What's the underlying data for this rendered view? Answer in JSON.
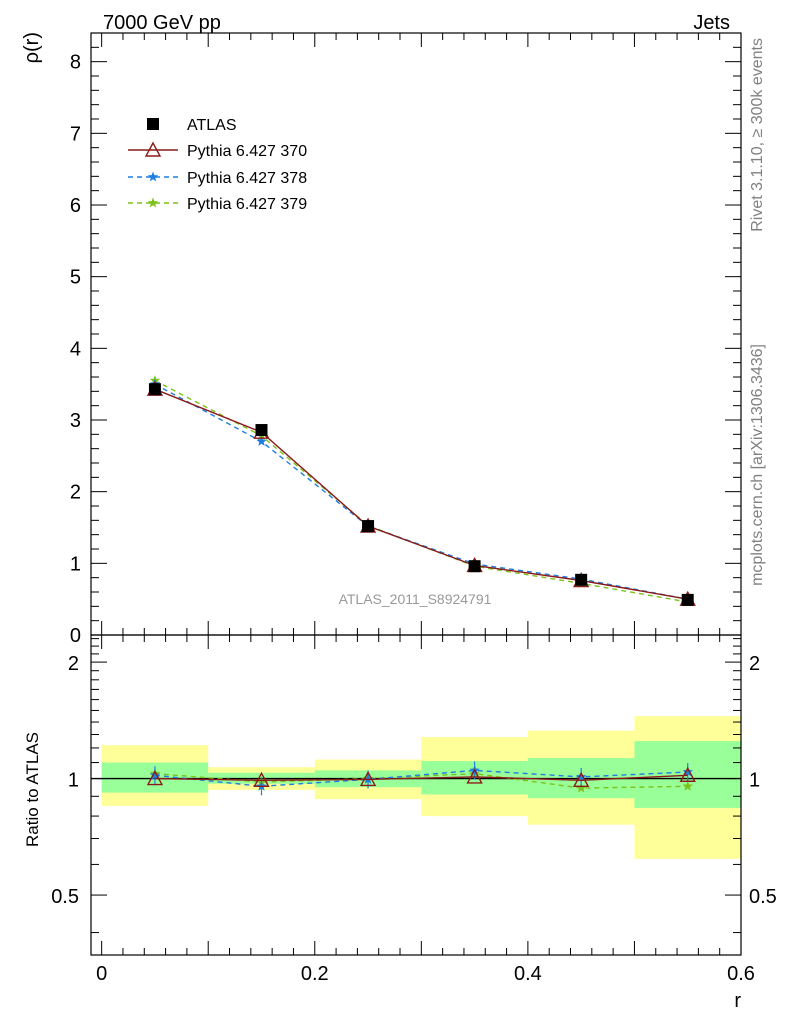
{
  "header": {
    "left": "7000 GeV pp",
    "right": "Jets"
  },
  "side_labels": {
    "rivet": "Rivet 3.1.10, ≥ 300k events",
    "mcplots": "mcplots.cern.ch [arXiv:1306.3436]"
  },
  "analysis_id": "ATLAS_2011_S8924791",
  "colors": {
    "atlas": "#000000",
    "p370": "#8b1a1a",
    "p378": "#1e7fe0",
    "p379": "#7cc21a",
    "band_inner": "#99ff99",
    "band_outer": "#ffff99"
  },
  "chart_data": [
    {
      "type": "line",
      "panel": "main",
      "ylabel": "ρ(r)",
      "xlim": [
        -0.01,
        0.6
      ],
      "ylim": [
        0,
        8.4
      ],
      "yticks": [
        0,
        1,
        2,
        3,
        4,
        5,
        6,
        7,
        8
      ],
      "ytick_labels": [
        "0",
        "1",
        "2",
        "3",
        "4",
        "5",
        "6",
        "7",
        "8"
      ],
      "x": [
        0.05,
        0.15,
        0.25,
        0.35,
        0.45,
        0.55
      ],
      "series": [
        {
          "name": "ATLAS",
          "key": "atlas",
          "values": [
            3.43,
            2.86,
            1.52,
            0.96,
            0.77,
            0.49
          ]
        },
        {
          "name": "Pythia 6.427 370",
          "key": "p370",
          "values": [
            3.43,
            2.83,
            1.52,
            0.97,
            0.76,
            0.5
          ]
        },
        {
          "name": "Pythia 6.427 378",
          "key": "p378",
          "values": [
            3.5,
            2.7,
            1.52,
            0.99,
            0.78,
            0.5
          ]
        },
        {
          "name": "Pythia 6.427 379",
          "key": "p379",
          "values": [
            3.55,
            2.78,
            1.53,
            0.96,
            0.72,
            0.46
          ]
        }
      ]
    },
    {
      "type": "line",
      "panel": "ratio",
      "ylabel": "Ratio to ATLAS",
      "xlabel": "r",
      "xlim": [
        -0.01,
        0.6
      ],
      "ylim": [
        0.35,
        2.35
      ],
      "yticks": [
        0.5,
        1,
        2
      ],
      "ytick_labels": [
        "0.5",
        "1",
        "2"
      ],
      "xticks": [
        0,
        0.2,
        0.4,
        0.6
      ],
      "xtick_labels": [
        "0",
        "0.2",
        "0.4",
        "0.6"
      ],
      "x": [
        0.05,
        0.15,
        0.25,
        0.35,
        0.45,
        0.55
      ],
      "bins": [
        [
          0,
          0.1
        ],
        [
          0.1,
          0.2
        ],
        [
          0.2,
          0.3
        ],
        [
          0.3,
          0.4
        ],
        [
          0.4,
          0.5
        ],
        [
          0.5,
          0.6
        ]
      ],
      "band_inner": [
        [
          0.92,
          1.1
        ],
        [
          0.97,
          1.035
        ],
        [
          0.95,
          1.05
        ],
        [
          0.91,
          1.11
        ],
        [
          0.89,
          1.13
        ],
        [
          0.84,
          1.25
        ]
      ],
      "band_outer": [
        [
          0.85,
          1.22
        ],
        [
          0.935,
          1.07
        ],
        [
          0.885,
          1.12
        ],
        [
          0.8,
          1.28
        ],
        [
          0.76,
          1.33
        ],
        [
          0.62,
          1.45
        ]
      ],
      "series": [
        {
          "name": "Pythia 6.427 370",
          "key": "p370",
          "values": [
            1.0,
            0.99,
            0.995,
            1.01,
            0.99,
            1.02
          ]
        },
        {
          "name": "Pythia 6.427 378",
          "key": "p378",
          "values": [
            1.02,
            0.955,
            0.995,
            1.05,
            1.01,
            1.04
          ]
        },
        {
          "name": "Pythia 6.427 379",
          "key": "p379",
          "values": [
            1.03,
            0.98,
            1.0,
            1.03,
            0.945,
            0.955
          ]
        }
      ]
    }
  ]
}
